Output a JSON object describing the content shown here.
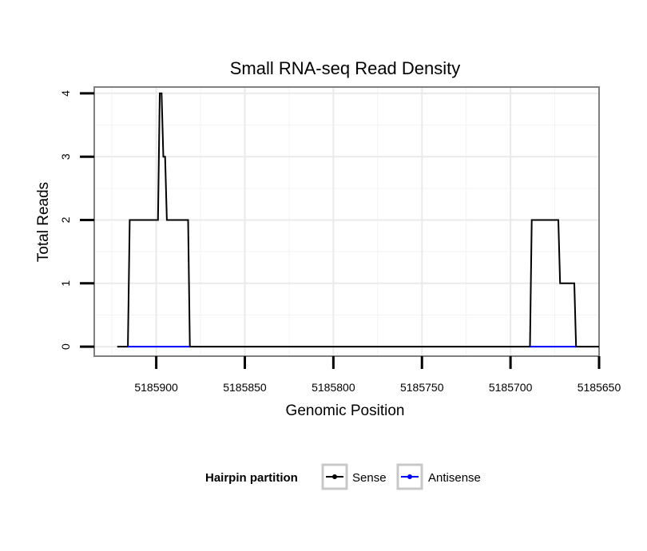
{
  "chart_data": {
    "type": "line",
    "title": "Small RNA-seq Read Density",
    "xlabel": "Genomic Position",
    "ylabel": "Total Reads",
    "xlim": [
      5185935,
      5185650
    ],
    "ylim": [
      -0.15,
      4.1
    ],
    "x_reversed": true,
    "x_ticks": [
      5185900,
      5185850,
      5185800,
      5185750,
      5185700,
      5185650
    ],
    "x_tick_labels": [
      "5185900",
      "5185850",
      "5185800",
      "5185750",
      "5185700",
      "5185650"
    ],
    "y_ticks": [
      0,
      1,
      2,
      3,
      4
    ],
    "y_tick_labels": [
      "0",
      "1",
      "2",
      "3",
      "4"
    ],
    "grid": true,
    "legend": {
      "title": "Hairpin partition",
      "position": "bottom",
      "entries": [
        "Sense",
        "Antisense"
      ]
    },
    "series": [
      {
        "name": "Sense",
        "color": "#000000",
        "points": [
          [
            5185922,
            0
          ],
          [
            5185916,
            0
          ],
          [
            5185915,
            2
          ],
          [
            5185899,
            2
          ],
          [
            5185898,
            4
          ],
          [
            5185897,
            4
          ],
          [
            5185896,
            3
          ],
          [
            5185895,
            3
          ],
          [
            5185894,
            2
          ],
          [
            5185882,
            2
          ],
          [
            5185881,
            0
          ],
          [
            5185690,
            0
          ],
          [
            5185689,
            0
          ],
          [
            5185688,
            2
          ],
          [
            5185673,
            2
          ],
          [
            5185672,
            1
          ],
          [
            5185664,
            1
          ],
          [
            5185663,
            0
          ],
          [
            5185650,
            0
          ]
        ]
      },
      {
        "name": "Antisense",
        "color": "#0000ff",
        "points": [
          [
            5185916,
            0
          ],
          [
            5185881,
            0
          ]
        ],
        "points_2": [
          [
            5185689,
            0
          ],
          [
            5185663,
            0
          ]
        ]
      }
    ]
  }
}
